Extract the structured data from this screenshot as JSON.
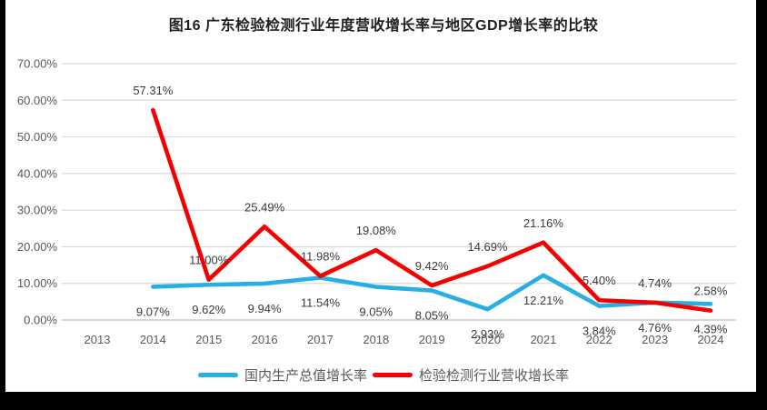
{
  "title": "图16 广东检验检测行业年度营收增长率与地区GDP增长率的比较",
  "colors": {
    "frame": "#000000",
    "background": "#ffffff",
    "gridline": "#d9d9d9",
    "axis_line": "#bfbfbf",
    "axis_text": "#595959",
    "data_label_text": "#3b3b3b",
    "title_text": "#1f1f1f"
  },
  "chart_data": {
    "type": "line",
    "title": "图16 广东检验检测行业年度营收增长率与地区GDP增长率的比较",
    "categories": [
      "2013",
      "2014",
      "2015",
      "2016",
      "2017",
      "2018",
      "2019",
      "2020",
      "2021",
      "2022",
      "2023",
      "2024"
    ],
    "series": [
      {
        "name": "国内生产总值增长率",
        "color": "#27AEE4",
        "label_side": "below",
        "values": [
          null,
          9.07,
          9.62,
          9.94,
          11.54,
          9.05,
          8.05,
          2.93,
          12.21,
          3.84,
          4.76,
          4.39
        ]
      },
      {
        "name": "检验检测行业营收增长率",
        "color": "#F40000",
        "label_side": "above",
        "values": [
          null,
          57.31,
          11.0,
          25.49,
          11.98,
          19.08,
          9.42,
          14.69,
          21.16,
          5.4,
          4.74,
          2.58
        ]
      }
    ],
    "ylim": [
      0,
      70
    ],
    "ytick_step": 10,
    "ytick_labels": [
      "0.00%",
      "10.00%",
      "20.00%",
      "30.00%",
      "40.00%",
      "50.00%",
      "60.00%",
      "70.00%"
    ],
    "value_format": "0.00%",
    "grid": true,
    "data_labels": true,
    "legend_position": "bottom"
  }
}
